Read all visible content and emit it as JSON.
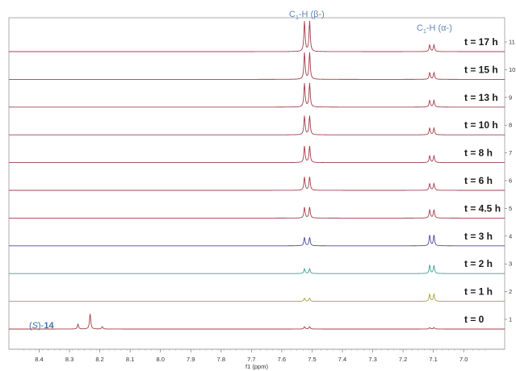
{
  "chart_data": {
    "type": "line",
    "title": "",
    "xlabel": "f1 (ppm)",
    "ylabel": "",
    "x_reversed": true,
    "xlim": [
      8.5,
      6.9
    ],
    "x_ticks": [
      "8.4",
      "8.3",
      "8.2",
      "8.1",
      "8.0",
      "7.9",
      "7.8",
      "7.7",
      "7.6",
      "7.5",
      "7.4",
      "7.3",
      "7.2",
      "7.1",
      "7.0"
    ],
    "annotations": {
      "beta": {
        "main": "C",
        "sub": "1",
        "rest": "-H (β-)",
        "ppm": 7.515
      },
      "alpha": {
        "main": "C",
        "sub": "1",
        "rest": "-H (α-)",
        "ppm": 7.105
      },
      "compound": {
        "prefix": "(",
        "italic": "S",
        "suffix": ")-",
        "bold": "14"
      }
    },
    "peak_ppm": {
      "beta": [
        7.525,
        7.508
      ],
      "alpha": [
        7.112,
        7.098
      ],
      "start": [
        8.232,
        8.272,
        8.192
      ]
    },
    "series": [
      {
        "name": "t = 0",
        "index": "1",
        "color": "#a04040",
        "beta": 0.1,
        "alpha": 0.1,
        "start": 1.0
      },
      {
        "name": "t = 1 h",
        "index": "2",
        "color": "#a8a040",
        "beta": 0.13,
        "alpha": 0.48,
        "start": 0
      },
      {
        "name": "t = 2 h",
        "index": "3",
        "color": "#3fa08f",
        "beta": 0.2,
        "alpha": 0.55,
        "start": 0
      },
      {
        "name": "t = 3 h",
        "index": "4",
        "color": "#4a4aa0",
        "beta": 0.35,
        "alpha": 0.72,
        "start": 0
      },
      {
        "name": "t = 4.5 h",
        "index": "5",
        "color": "#a0404c",
        "beta": 0.45,
        "alpha": 0.55,
        "start": 0
      },
      {
        "name": "t = 6 h",
        "index": "6",
        "color": "#a0404c",
        "beta": 0.55,
        "alpha": 0.45,
        "start": 0
      },
      {
        "name": "t = 8 h",
        "index": "7",
        "color": "#a0404c",
        "beta": 0.68,
        "alpha": 0.45,
        "start": 0
      },
      {
        "name": "t = 10 h",
        "index": "8",
        "color": "#a0404c",
        "beta": 0.78,
        "alpha": 0.45,
        "start": 0
      },
      {
        "name": "t = 13 h",
        "index": "9",
        "color": "#a0404c",
        "beta": 0.98,
        "alpha": 0.45,
        "start": 0
      },
      {
        "name": "t = 15 h",
        "index": "10",
        "color": "#a0404c",
        "beta": 1.1,
        "alpha": 0.45,
        "start": 0
      },
      {
        "name": "t = 17 h",
        "index": "11",
        "color": "#a0404c",
        "beta": 1.25,
        "alpha": 0.45,
        "start": 0
      }
    ]
  }
}
